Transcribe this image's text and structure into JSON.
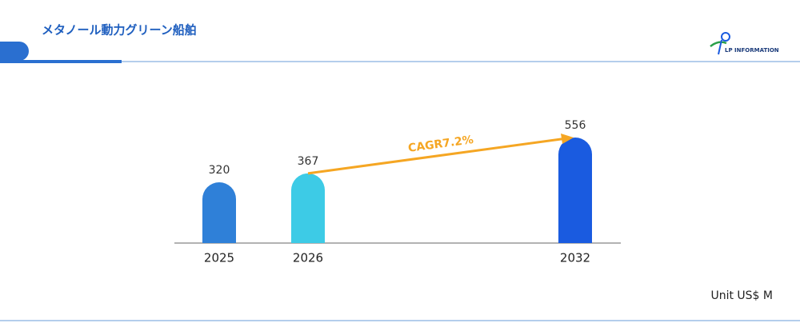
{
  "header": {
    "title": "メタノール動力グリーン船舶",
    "logo": "LP INFORMATION"
  },
  "chart_data": {
    "type": "bar",
    "categories": [
      "2025",
      "2026",
      "2032"
    ],
    "values": [
      320,
      367,
      556
    ],
    "colors": [
      "#2f80d8",
      "#3dcbe6",
      "#1a5be0"
    ],
    "annotation": "CAGR7.2%",
    "unit": "Unit US$ M"
  }
}
